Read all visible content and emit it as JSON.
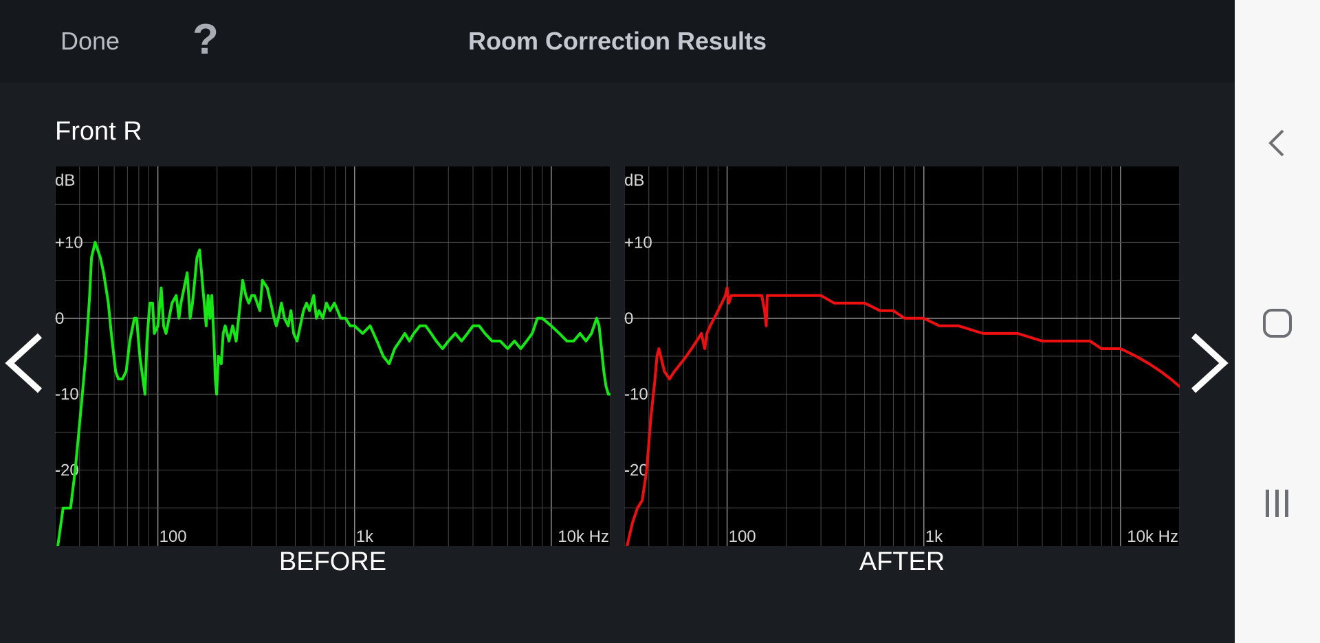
{
  "header": {
    "done_label": "Done",
    "help_label": "?",
    "title": "Room Correction Results"
  },
  "channel": {
    "name": "Front R"
  },
  "navigation": {
    "prev_icon": "chevron-left-icon",
    "next_icon": "chevron-right-icon"
  },
  "system_nav": {
    "back_icon": "back-chevron-icon",
    "home_icon": "home-square-icon",
    "recents_icon": "recents-bars-icon"
  },
  "colors": {
    "before_curve": "#16e816",
    "after_curve": "#ee1010",
    "background": "#1a1d22",
    "plot_bg": "#000000",
    "grid": "#4a4a4a",
    "zero_line": "#9a9a9a"
  },
  "chart_data": [
    {
      "type": "line",
      "caption": "BEFORE",
      "y_unit_label": "dB",
      "y_tick_labels": [
        "+10",
        "0",
        "-10",
        "-20"
      ],
      "x_tick_labels": [
        "100",
        "1k",
        "10k Hz"
      ],
      "x_scale": "log",
      "xlim": [
        30,
        20000
      ],
      "ylim": [
        -30,
        20
      ],
      "grid": true,
      "series": [
        {
          "color": "#16e816",
          "points": [
            [
              31,
              -30
            ],
            [
              33,
              -25
            ],
            [
              36,
              -25
            ],
            [
              38,
              -20
            ],
            [
              41,
              -11
            ],
            [
              43,
              -5
            ],
            [
              45,
              3
            ],
            [
              46,
              8
            ],
            [
              48,
              10
            ],
            [
              51,
              8
            ],
            [
              53,
              6
            ],
            [
              56,
              2
            ],
            [
              58,
              -2
            ],
            [
              61,
              -7
            ],
            [
              63,
              -8
            ],
            [
              66,
              -8
            ],
            [
              69,
              -7
            ],
            [
              72,
              -3
            ],
            [
              76,
              0
            ],
            [
              78,
              0
            ],
            [
              81,
              -5
            ],
            [
              84,
              -8
            ],
            [
              86,
              -10
            ],
            [
              88,
              -3
            ],
            [
              91,
              2
            ],
            [
              94,
              2
            ],
            [
              96,
              -2
            ],
            [
              100,
              -1
            ],
            [
              104,
              4
            ],
            [
              107,
              -1
            ],
            [
              110,
              -2
            ],
            [
              114,
              0
            ],
            [
              118,
              2
            ],
            [
              124,
              3
            ],
            [
              128,
              0
            ],
            [
              131,
              2
            ],
            [
              136,
              4
            ],
            [
              141,
              6
            ],
            [
              146,
              0
            ],
            [
              150,
              2
            ],
            [
              154,
              5
            ],
            [
              158,
              8
            ],
            [
              163,
              9
            ],
            [
              168,
              5
            ],
            [
              172,
              2
            ],
            [
              176,
              -1
            ],
            [
              180,
              3
            ],
            [
              184,
              0
            ],
            [
              188,
              3
            ],
            [
              193,
              -3
            ],
            [
              196,
              -8
            ],
            [
              199,
              -10
            ],
            [
              203,
              -5
            ],
            [
              210,
              -6
            ],
            [
              215,
              -2
            ],
            [
              220,
              -1
            ],
            [
              230,
              -3
            ],
            [
              240,
              -1
            ],
            [
              250,
              -3
            ],
            [
              260,
              1
            ],
            [
              270,
              5
            ],
            [
              280,
              3
            ],
            [
              290,
              2
            ],
            [
              300,
              3
            ],
            [
              310,
              3
            ],
            [
              320,
              2
            ],
            [
              330,
              1
            ],
            [
              340,
              5
            ],
            [
              360,
              4
            ],
            [
              375,
              2
            ],
            [
              390,
              0
            ],
            [
              400,
              -1
            ],
            [
              410,
              0
            ],
            [
              425,
              2
            ],
            [
              440,
              0
            ],
            [
              460,
              -1
            ],
            [
              475,
              1
            ],
            [
              490,
              -2
            ],
            [
              510,
              -3
            ],
            [
              530,
              -1
            ],
            [
              550,
              1
            ],
            [
              570,
              2
            ],
            [
              590,
              1
            ],
            [
              620,
              3
            ],
            [
              640,
              0
            ],
            [
              660,
              1
            ],
            [
              690,
              0
            ],
            [
              720,
              2
            ],
            [
              750,
              1
            ],
            [
              790,
              2
            ],
            [
              820,
              1
            ],
            [
              850,
              0
            ],
            [
              900,
              0
            ],
            [
              950,
              -1
            ],
            [
              1000,
              -1
            ],
            [
              1100,
              -2
            ],
            [
              1200,
              -1
            ],
            [
              1300,
              -3
            ],
            [
              1400,
              -5
            ],
            [
              1500,
              -6
            ],
            [
              1600,
              -4
            ],
            [
              1700,
              -3
            ],
            [
              1800,
              -2
            ],
            [
              1900,
              -3
            ],
            [
              2000,
              -2
            ],
            [
              2150,
              -1
            ],
            [
              2300,
              -1
            ],
            [
              2450,
              -2
            ],
            [
              2600,
              -3
            ],
            [
              2800,
              -4
            ],
            [
              3000,
              -3
            ],
            [
              3250,
              -2
            ],
            [
              3500,
              -3
            ],
            [
              3750,
              -2
            ],
            [
              4000,
              -1
            ],
            [
              4300,
              -1
            ],
            [
              4600,
              -2
            ],
            [
              5000,
              -3
            ],
            [
              5500,
              -3
            ],
            [
              6000,
              -4
            ],
            [
              6500,
              -3
            ],
            [
              7000,
              -4
            ],
            [
              7500,
              -3
            ],
            [
              8000,
              -2
            ],
            [
              8500,
              0
            ],
            [
              9000,
              0
            ],
            [
              10000,
              -1
            ],
            [
              11000,
              -2
            ],
            [
              12000,
              -3
            ],
            [
              13000,
              -3
            ],
            [
              14000,
              -2
            ],
            [
              15000,
              -3
            ],
            [
              16000,
              -2
            ],
            [
              17000,
              0
            ],
            [
              17500,
              -1
            ],
            [
              18000,
              -4
            ],
            [
              18500,
              -7
            ],
            [
              19000,
              -9
            ],
            [
              19500,
              -10
            ],
            [
              20000,
              -10
            ]
          ]
        }
      ]
    },
    {
      "type": "line",
      "caption": "AFTER",
      "y_unit_label": "dB",
      "y_tick_labels": [
        "+10",
        "0",
        "-10",
        "-20"
      ],
      "x_tick_labels": [
        "100",
        "1k",
        "10k Hz"
      ],
      "x_scale": "log",
      "xlim": [
        30,
        20000
      ],
      "ylim": [
        -30,
        20
      ],
      "grid": true,
      "series": [
        {
          "color": "#ee1010",
          "points": [
            [
              31,
              -30
            ],
            [
              33,
              -27
            ],
            [
              35,
              -25
            ],
            [
              37,
              -24
            ],
            [
              39,
              -20
            ],
            [
              41,
              -13
            ],
            [
              43,
              -8
            ],
            [
              44,
              -5
            ],
            [
              45,
              -4
            ],
            [
              46,
              -5
            ],
            [
              48,
              -7
            ],
            [
              51,
              -8
            ],
            [
              54,
              -7
            ],
            [
              58,
              -6
            ],
            [
              62,
              -5
            ],
            [
              66,
              -4
            ],
            [
              70,
              -3
            ],
            [
              74,
              -2
            ],
            [
              77,
              -4
            ],
            [
              79,
              -2
            ],
            [
              82,
              -1
            ],
            [
              86,
              0
            ],
            [
              90,
              1
            ],
            [
              94,
              2
            ],
            [
              98,
              3
            ],
            [
              100,
              4
            ],
            [
              102,
              2
            ],
            [
              105,
              3
            ],
            [
              110,
              3
            ],
            [
              120,
              3
            ],
            [
              130,
              3
            ],
            [
              140,
              3
            ],
            [
              150,
              3
            ],
            [
              155,
              1
            ],
            [
              158,
              -1
            ],
            [
              160,
              3
            ],
            [
              170,
              3
            ],
            [
              200,
              3
            ],
            [
              250,
              3
            ],
            [
              300,
              3
            ],
            [
              350,
              2
            ],
            [
              400,
              2
            ],
            [
              500,
              2
            ],
            [
              600,
              1
            ],
            [
              700,
              1
            ],
            [
              800,
              0
            ],
            [
              900,
              0
            ],
            [
              1000,
              0
            ],
            [
              1200,
              -1
            ],
            [
              1500,
              -1
            ],
            [
              2000,
              -2
            ],
            [
              3000,
              -2
            ],
            [
              4000,
              -3
            ],
            [
              5000,
              -3
            ],
            [
              6000,
              -3
            ],
            [
              7000,
              -3
            ],
            [
              8000,
              -4
            ],
            [
              10000,
              -4
            ],
            [
              12000,
              -5
            ],
            [
              14000,
              -6
            ],
            [
              16000,
              -7
            ],
            [
              18000,
              -8
            ],
            [
              20000,
              -9
            ]
          ]
        }
      ]
    }
  ]
}
